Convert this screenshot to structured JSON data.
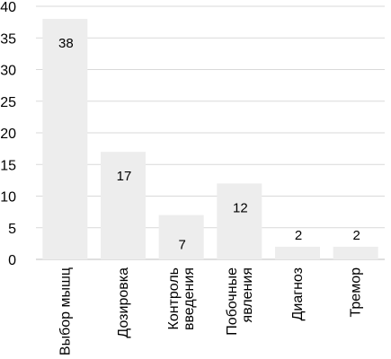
{
  "chart_data": {
    "type": "bar",
    "categories": [
      [
        "Выбор мышц"
      ],
      [
        "Дозировка"
      ],
      [
        "Контроль",
        "введения"
      ],
      [
        "Побочные",
        "явления"
      ],
      [
        "Диагноз"
      ],
      [
        "Тремор"
      ]
    ],
    "values": [
      38,
      17,
      7,
      12,
      2,
      2
    ],
    "data_labels": [
      "38",
      "17",
      "7",
      "12",
      "2",
      "2"
    ],
    "ylim": [
      0,
      40
    ],
    "y_ticks": [
      "0",
      "5",
      "10",
      "15",
      "20",
      "25",
      "30",
      "35",
      "40"
    ],
    "title": "",
    "xlabel": "",
    "ylabel": "",
    "grid": true,
    "legend": "none",
    "bar_color": "#ededed",
    "grid_color": "#d9d9d9",
    "axis_color": "#bfbfbf"
  }
}
